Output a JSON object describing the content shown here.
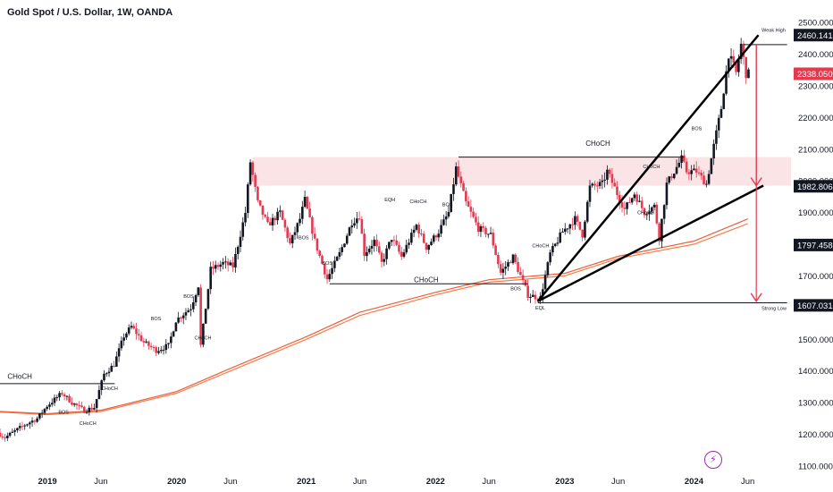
{
  "header": {
    "title": "Gold Spot / U.S. Dollar, 1W, OANDA"
  },
  "icons": {
    "bolt": "lightning-icon"
  },
  "colors": {
    "up": "#131722",
    "down": "#e53950",
    "ema1": "#f57c4c",
    "ema2": "#e8613a",
    "zone": "#fbe4e6",
    "arrow": "#e53950",
    "wedge": "#000000",
    "label_price": "#ffffff",
    "label_bg": "#131722",
    "label_red": "#e53950"
  },
  "chart_data": {
    "type": "candlestick",
    "title": "Gold Spot / U.S. Dollar, 1W, OANDA",
    "ylim": [
      1080,
      2520
    ],
    "y_ticks": [
      1100,
      1200,
      1300,
      1400,
      1500,
      1600,
      1700,
      1800,
      1900,
      2000,
      2100,
      2200,
      2300,
      2400,
      2500
    ],
    "y_tick_labels": [
      "1100.000",
      "1200.000",
      "1300.000",
      "1400.000",
      "1500.000",
      "1600.000",
      "1700.000",
      "1800.000",
      "1900.000",
      "2000.000",
      "2100.000",
      "2200.000",
      "2300.000",
      "2400.000",
      "2500.000"
    ],
    "x_labels": [
      {
        "label": "2019",
        "date": "2019-01-01"
      },
      {
        "label": "Jun",
        "date": "2019-06-01"
      },
      {
        "label": "2020",
        "date": "2020-01-01"
      },
      {
        "label": "Jun",
        "date": "2020-06-01"
      },
      {
        "label": "2021",
        "date": "2021-01-01"
      },
      {
        "label": "Jun",
        "date": "2021-06-01"
      },
      {
        "label": "2022",
        "date": "2022-01-01"
      },
      {
        "label": "Jun",
        "date": "2022-06-01"
      },
      {
        "label": "2023",
        "date": "2023-01-01"
      },
      {
        "label": "Jun",
        "date": "2023-06-01"
      },
      {
        "label": "2024",
        "date": "2024-01-01"
      },
      {
        "label": "Jun",
        "date": "2024-06-01"
      }
    ],
    "x_range": [
      "2018-08-20",
      "2024-10-01"
    ],
    "price_path": [
      [
        "2018-08-20",
        1205
      ],
      [
        "2018-09-10",
        1190
      ],
      [
        "2018-10-01",
        1205
      ],
      [
        "2018-11-05",
        1230
      ],
      [
        "2018-12-10",
        1250
      ],
      [
        "2019-01-07",
        1290
      ],
      [
        "2019-02-18",
        1330
      ],
      [
        "2019-03-18",
        1300
      ],
      [
        "2019-04-22",
        1275
      ],
      [
        "2019-05-20",
        1285
      ],
      [
        "2019-06-17",
        1390
      ],
      [
        "2019-07-15",
        1420
      ],
      [
        "2019-08-12",
        1510
      ],
      [
        "2019-09-02",
        1540
      ],
      [
        "2019-10-07",
        1490
      ],
      [
        "2019-11-11",
        1465
      ],
      [
        "2019-12-16",
        1480
      ],
      [
        "2020-01-06",
        1560
      ],
      [
        "2020-02-17",
        1600
      ],
      [
        "2020-03-09",
        1670
      ],
      [
        "2020-03-16",
        1480
      ],
      [
        "2020-04-13",
        1720
      ],
      [
        "2020-05-18",
        1740
      ],
      [
        "2020-06-15",
        1730
      ],
      [
        "2020-07-20",
        1900
      ],
      [
        "2020-08-03",
        2060
      ],
      [
        "2020-08-24",
        1930
      ],
      [
        "2020-09-21",
        1860
      ],
      [
        "2020-10-26",
        1900
      ],
      [
        "2020-11-23",
        1800
      ],
      [
        "2020-12-21",
        1880
      ],
      [
        "2021-01-04",
        1940
      ],
      [
        "2021-02-01",
        1810
      ],
      [
        "2021-03-08",
        1690
      ],
      [
        "2021-04-12",
        1770
      ],
      [
        "2021-05-17",
        1870
      ],
      [
        "2021-06-07",
        1890
      ],
      [
        "2021-06-21",
        1770
      ],
      [
        "2021-07-19",
        1810
      ],
      [
        "2021-08-09",
        1740
      ],
      [
        "2021-09-06",
        1820
      ],
      [
        "2021-10-04",
        1760
      ],
      [
        "2021-11-15",
        1860
      ],
      [
        "2021-12-13",
        1790
      ],
      [
        "2022-01-17",
        1840
      ],
      [
        "2022-02-14",
        1900
      ],
      [
        "2022-03-07",
        2040
      ],
      [
        "2022-04-04",
        1930
      ],
      [
        "2022-05-09",
        1850
      ],
      [
        "2022-06-13",
        1830
      ],
      [
        "2022-07-11",
        1710
      ],
      [
        "2022-08-15",
        1760
      ],
      [
        "2022-09-26",
        1640
      ],
      [
        "2022-10-31",
        1630
      ],
      [
        "2022-11-28",
        1770
      ],
      [
        "2023-01-02",
        1840
      ],
      [
        "2023-02-06",
        1880
      ],
      [
        "2023-02-27",
        1830
      ],
      [
        "2023-03-20",
        1980
      ],
      [
        "2023-04-24",
        1990
      ],
      [
        "2023-05-08",
        2030
      ],
      [
        "2023-06-05",
        1960
      ],
      [
        "2023-06-26",
        1910
      ],
      [
        "2023-07-24",
        1960
      ],
      [
        "2023-08-21",
        1900
      ],
      [
        "2023-09-18",
        1920
      ],
      [
        "2023-10-02",
        1820
      ],
      [
        "2023-10-23",
        1990
      ],
      [
        "2023-12-04",
        2070
      ],
      [
        "2023-12-18",
        2030
      ],
      [
        "2024-01-15",
        2030
      ],
      [
        "2024-02-12",
        1990
      ],
      [
        "2024-03-04",
        2110
      ],
      [
        "2024-03-25",
        2230
      ],
      [
        "2024-04-15",
        2400
      ],
      [
        "2024-05-06",
        2340
      ],
      [
        "2024-05-20",
        2430
      ],
      [
        "2024-06-03",
        2338
      ]
    ],
    "series": [
      {
        "name": "",
        "type": "ema",
        "values": [
          [
            "2018-08-20",
            1270
          ],
          [
            "2019-01-01",
            1262
          ],
          [
            "2019-06-01",
            1272
          ],
          [
            "2020-01-01",
            1330
          ],
          [
            "2020-06-01",
            1400
          ],
          [
            "2021-01-01",
            1500
          ],
          [
            "2021-06-01",
            1575
          ],
          [
            "2022-01-01",
            1640
          ],
          [
            "2022-06-01",
            1680
          ],
          [
            "2023-01-01",
            1700
          ],
          [
            "2023-06-01",
            1755
          ],
          [
            "2024-01-01",
            1800
          ],
          [
            "2024-06-01",
            1865
          ]
        ]
      },
      {
        "name": "",
        "type": "ema",
        "values": [
          [
            "2018-08-20",
            1272
          ],
          [
            "2019-01-01",
            1265
          ],
          [
            "2019-06-01",
            1276
          ],
          [
            "2020-01-01",
            1335
          ],
          [
            "2020-06-01",
            1408
          ],
          [
            "2021-01-01",
            1508
          ],
          [
            "2021-06-01",
            1585
          ],
          [
            "2022-01-01",
            1648
          ],
          [
            "2022-06-01",
            1688
          ],
          [
            "2023-01-01",
            1708
          ],
          [
            "2023-06-01",
            1762
          ],
          [
            "2024-01-01",
            1810
          ],
          [
            "2024-06-01",
            1880
          ]
        ]
      }
    ],
    "zone": {
      "y_top": 2075,
      "y_bottom": 1985,
      "x_start": "2020-08-03",
      "x_end": "2024-10-01"
    },
    "trendlines": [
      {
        "from": [
          "2022-10-17",
          1620
        ],
        "to": [
          "2024-07-01",
          2460
        ]
      },
      {
        "from": [
          "2022-10-17",
          1620
        ],
        "to": [
          "2024-07-15",
          1985
        ]
      }
    ],
    "annotations": [
      {
        "text": "CHoCH",
        "x": "2018-09-10",
        "y": 1375
      },
      {
        "text": "CHoCH",
        "x": "2021-11-01",
        "y": 1680
      },
      {
        "text": "CHoCH",
        "x": "2023-03-01",
        "y": 2110
      },
      {
        "text": "Weak High",
        "x": "2024-07-10",
        "y": 2470
      },
      {
        "text": "Strong Low",
        "x": "2024-07-10",
        "y": 1592
      },
      {
        "text": "EQL",
        "x": "2022-10-10",
        "y": 1594
      },
      {
        "text": "EQH",
        "x": "2021-08-10",
        "y": 1935
      },
      {
        "text": "BOS",
        "x": "2019-02-01",
        "y": 1265
      },
      {
        "text": "CHoCH",
        "x": "2019-04-01",
        "y": 1230
      },
      {
        "text": "CHoCH",
        "x": "2019-06-01",
        "y": 1340
      },
      {
        "text": "BOS",
        "x": "2019-10-20",
        "y": 1560
      },
      {
        "text": "BOS",
        "x": "2020-01-20",
        "y": 1630
      },
      {
        "text": "CHoCH",
        "x": "2020-02-20",
        "y": 1500
      },
      {
        "text": "BOS",
        "x": "2020-12-10",
        "y": 1815
      },
      {
        "text": "BOS",
        "x": "2021-02-15",
        "y": 1735
      },
      {
        "text": "CHoCH",
        "x": "2021-10-20",
        "y": 1930
      },
      {
        "text": "BOS",
        "x": "2022-01-20",
        "y": 1920
      },
      {
        "text": "CHoCH",
        "x": "2022-10-01",
        "y": 1790
      },
      {
        "text": "BOS",
        "x": "2022-08-01",
        "y": 1655
      },
      {
        "text": "CHoCH",
        "x": "2023-08-10",
        "y": 2040
      },
      {
        "text": "CHoCH",
        "x": "2023-07-25",
        "y": 1895
      },
      {
        "text": "BOS",
        "x": "2023-12-25",
        "y": 2160
      }
    ],
    "h_levels": [
      {
        "y": 1360,
        "x_start": "2018-08-20",
        "x_end": "2019-07-10",
        "style": "solid"
      },
      {
        "y": 1675,
        "x_start": "2021-03-08",
        "x_end": "2022-09-20",
        "style": "solid"
      },
      {
        "y": 2075,
        "x_start": "2022-03-07",
        "x_end": "2023-12-04",
        "style": "solid"
      },
      {
        "y": 2430,
        "x_start": "2024-05-20",
        "x_end": "2024-09-20",
        "style": "solid"
      },
      {
        "y": 1615,
        "x_start": "2022-10-17",
        "x_end": "2024-09-20",
        "style": "solid"
      }
    ],
    "arrows": [
      {
        "from": [
          "2024-06-25",
          2430
        ],
        "to": [
          "2024-06-25",
          1985
        ]
      },
      {
        "from": [
          "2024-06-25",
          2430
        ],
        "to": [
          "2024-06-25",
          1620
        ]
      }
    ],
    "price_labels": [
      {
        "value": "2460.141",
        "y": 2460,
        "style": "dark"
      },
      {
        "value": "2338.050",
        "y": 2338,
        "style": "red"
      },
      {
        "value": "1982.806",
        "y": 1982.8,
        "style": "dark"
      },
      {
        "value": "1797.458",
        "y": 1797.5,
        "style": "dark"
      },
      {
        "value": "1607.031",
        "y": 1607,
        "style": "dark"
      }
    ]
  }
}
